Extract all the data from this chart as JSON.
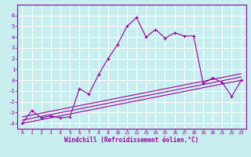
{
  "xlabel": "Windchill (Refroidissement éolien,°C)",
  "bg_color": "#c8eef0",
  "grid_color": "#ffffff",
  "line_color": "#990099",
  "xlim": [
    -0.5,
    23.5
  ],
  "ylim": [
    -4.5,
    7.0
  ],
  "xticks": [
    0,
    1,
    2,
    3,
    4,
    5,
    6,
    7,
    8,
    9,
    10,
    11,
    12,
    13,
    14,
    15,
    16,
    17,
    18,
    19,
    20,
    21,
    22,
    23
  ],
  "yticks": [
    -4,
    -3,
    -2,
    -1,
    0,
    1,
    2,
    3,
    4,
    5,
    6
  ],
  "scatter_x": [
    0,
    1,
    2,
    3,
    4,
    5,
    6,
    7,
    8,
    9,
    10,
    11,
    12,
    13,
    14,
    15,
    16,
    17,
    18,
    19,
    20,
    21,
    22,
    23
  ],
  "scatter_y": [
    -4.0,
    -2.8,
    -3.5,
    -3.3,
    -3.5,
    -3.4,
    -0.8,
    -1.3,
    0.5,
    2.0,
    3.3,
    5.0,
    5.8,
    4.0,
    4.7,
    3.9,
    4.4,
    4.1,
    4.1,
    -0.3,
    0.2,
    -0.2,
    -1.5,
    0.0
  ],
  "line1_x": [
    0,
    23
  ],
  "line1_y": [
    -4.0,
    0.0
  ],
  "line2_x": [
    0,
    23
  ],
  "line2_y": [
    -3.7,
    0.3
  ],
  "line3_x": [
    0,
    23
  ],
  "line3_y": [
    -3.4,
    0.6
  ],
  "xlabel_fontsize": 5.5,
  "tick_fontsize": 4.5
}
